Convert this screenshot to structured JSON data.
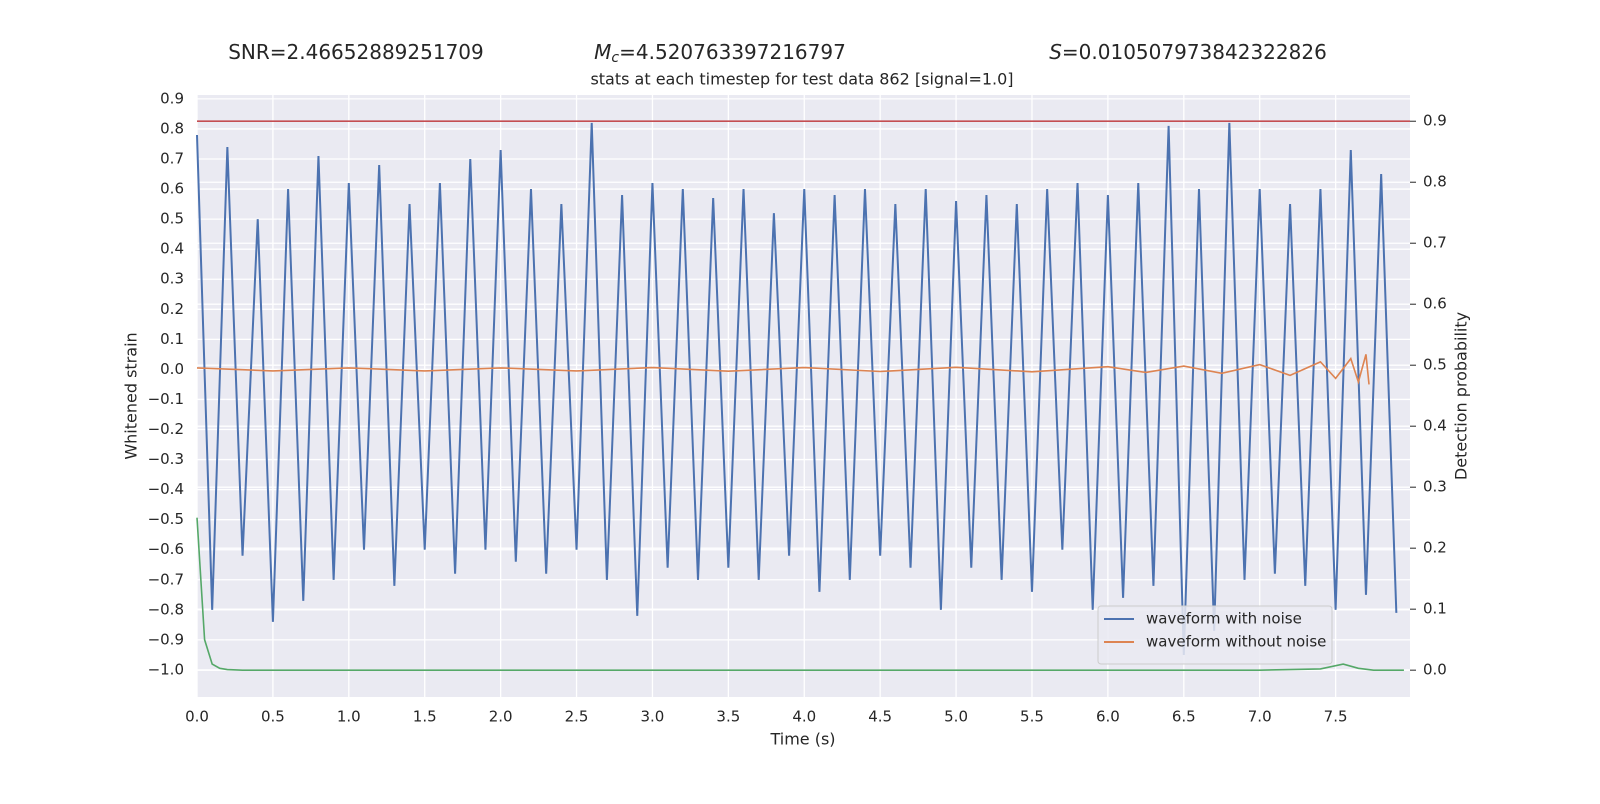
{
  "chart_data": {
    "type": "line",
    "headline": [
      {
        "text": "SNR=2.46652889251709"
      },
      {
        "symbol": "M",
        "sub": "c",
        "text": "=4.520763397216797"
      },
      {
        "symbol": "S",
        "text": "=0.010507973842322826"
      }
    ],
    "title": "stats at each timestep for test data 862 [signal=1.0]",
    "xlabel": "Time (s)",
    "ylabel": "Whitened strain",
    "y2label": "Detection probability",
    "xlim": [
      0,
      7.99
    ],
    "ylim": [
      -1.09,
      0.913
    ],
    "y2lim": [
      -0.044,
      0.943
    ],
    "xticks": [
      {
        "value": 0,
        "label": "0.0"
      },
      0.5,
      {
        "value": 1,
        "label": "1.0"
      },
      1.5,
      {
        "value": 2,
        "label": "2.0"
      },
      2.5,
      {
        "value": 3,
        "label": "3.0"
      },
      3.5,
      {
        "value": 4,
        "label": "4.0"
      },
      4.5,
      {
        "value": 5,
        "label": "5.0"
      },
      5.5,
      {
        "value": 6,
        "label": "6.0"
      },
      6.5,
      {
        "value": 7,
        "label": "7.0"
      },
      7.5
    ],
    "yticks": [
      {
        "value": -1,
        "label": "−1.0"
      },
      {
        "value": -0.9,
        "label": "−0.9"
      },
      {
        "value": -0.8,
        "label": "−0.8"
      },
      {
        "value": -0.7,
        "label": "−0.7"
      },
      {
        "value": -0.6,
        "label": "−0.6"
      },
      {
        "value": -0.5,
        "label": "−0.5"
      },
      {
        "value": -0.4,
        "label": "−0.4"
      },
      {
        "value": -0.3,
        "label": "−0.3"
      },
      {
        "value": -0.2,
        "label": "−0.2"
      },
      {
        "value": -0.1,
        "label": "−0.1"
      },
      {
        "value": 0,
        "label": "0.0"
      },
      0.1,
      0.2,
      0.3,
      0.4,
      0.5,
      0.6,
      0.7,
      0.8,
      0.9
    ],
    "y2ticks": [
      {
        "value": 0,
        "label": "0.0"
      },
      0.1,
      0.2,
      0.3,
      0.4,
      0.5,
      0.6,
      0.7,
      0.8,
      0.9
    ],
    "grid": true,
    "legend": "lower right",
    "threshold": {
      "value": 0.9,
      "axis": "y2",
      "color": "#c44e52"
    },
    "series": [
      {
        "name": "waveform with noise",
        "color": "#4c72b0",
        "axis": "y",
        "x": [
          0,
          0.1,
          0.2,
          0.3,
          0.4,
          0.5,
          0.6,
          0.7,
          0.8,
          0.9,
          1,
          1.1,
          1.2,
          1.3,
          1.4,
          1.5,
          1.6,
          1.7,
          1.8,
          1.9,
          2,
          2.1,
          2.2,
          2.3,
          2.4,
          2.5,
          2.6,
          2.7,
          2.8,
          2.9,
          3,
          3.1,
          3.2,
          3.3,
          3.4,
          3.5,
          3.6,
          3.7,
          3.8,
          3.9,
          4,
          4.1,
          4.2,
          4.3,
          4.4,
          4.5,
          4.6,
          4.7,
          4.8,
          4.9,
          5,
          5.1,
          5.2,
          5.3,
          5.4,
          5.5,
          5.6,
          5.7,
          5.8,
          5.9,
          6,
          6.1,
          6.2,
          6.3,
          6.4,
          6.5,
          6.6,
          6.7,
          6.8,
          6.9,
          7,
          7.1,
          7.2,
          7.3,
          7.4,
          7.5,
          7.6,
          7.7,
          7.8,
          7.9
        ],
        "values": [
          0.78,
          -0.8,
          0.74,
          -0.62,
          0.5,
          -0.84,
          0.6,
          -0.77,
          0.71,
          -0.7,
          0.62,
          -0.6,
          0.68,
          -0.72,
          0.55,
          -0.6,
          0.62,
          -0.68,
          0.7,
          -0.6,
          0.73,
          -0.64,
          0.6,
          -0.68,
          0.55,
          -0.6,
          0.82,
          -0.7,
          0.58,
          -0.82,
          0.62,
          -0.66,
          0.6,
          -0.7,
          0.57,
          -0.66,
          0.6,
          -0.7,
          0.52,
          -0.62,
          0.6,
          -0.74,
          0.58,
          -0.7,
          0.6,
          -0.62,
          0.55,
          -0.66,
          0.6,
          -0.8,
          0.56,
          -0.66,
          0.58,
          -0.7,
          0.55,
          -0.74,
          0.6,
          -0.6,
          0.62,
          -0.8,
          0.58,
          -0.76,
          0.62,
          -0.72,
          0.81,
          -0.95,
          0.6,
          -0.87,
          0.82,
          -0.7,
          0.6,
          -0.68,
          0.55,
          -0.72,
          0.6,
          -0.8,
          0.73,
          -0.75,
          0.65,
          -0.81
        ]
      },
      {
        "name": "waveform without noise",
        "color": "#dd8452",
        "axis": "y",
        "x": [
          0,
          0.5,
          1,
          1.5,
          2,
          2.5,
          3,
          3.5,
          4,
          4.5,
          5,
          5.5,
          6,
          6.25,
          6.5,
          6.75,
          7,
          7.2,
          7.4,
          7.5,
          7.6,
          7.65,
          7.7,
          7.72
        ],
        "values": [
          0.005,
          -0.005,
          0.005,
          -0.005,
          0.005,
          -0.005,
          0.006,
          -0.006,
          0.006,
          -0.007,
          0.007,
          -0.008,
          0.009,
          -0.01,
          0.011,
          -0.013,
          0.016,
          -0.02,
          0.025,
          -0.03,
          0.036,
          -0.042,
          0.05,
          -0.05
        ]
      },
      {
        "color": "#55a868",
        "axis": "y2",
        "x": [
          0,
          0.05,
          0.1,
          0.15,
          0.2,
          0.3,
          0.5,
          1,
          2,
          3,
          4,
          5,
          6,
          7,
          7.4,
          7.55,
          7.65,
          7.75,
          7.95
        ],
        "values": [
          0.25,
          0.05,
          0.01,
          0.003,
          0.001,
          0,
          0,
          0,
          0,
          0,
          0,
          0,
          0,
          0,
          0.002,
          0.01,
          0.003,
          0,
          0
        ]
      }
    ]
  }
}
